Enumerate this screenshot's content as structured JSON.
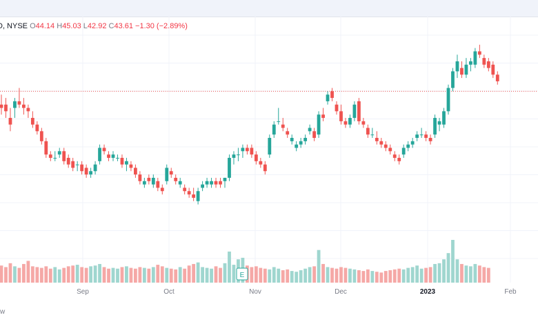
{
  "legend": {
    "ticker": "D, NYSE",
    "o_label": "O",
    "o_value": "44.14",
    "h_label": "H",
    "h_value": "45.03",
    "l_label": "L",
    "l_value": "42.92",
    "c_label": "C",
    "c_value": "43.61",
    "change": "−1.30 (−2.89%)"
  },
  "footer_text": "w",
  "event_badge": "E",
  "colors": {
    "up": "#26a69a",
    "down": "#ef5350",
    "up_vol": "#9fd6cf",
    "down_vol": "#f5a8a6",
    "grid": "#f0f3fa",
    "price_line": "#ef5350"
  },
  "chart_data": {
    "type": "candlestick",
    "x_tick_labels": [
      "Sep",
      "Oct",
      "Nov",
      "Dec",
      "2023",
      "Feb"
    ],
    "ylim": [
      40.5,
      46.3
    ],
    "last_price": 44.8,
    "candles": [
      {
        "o": 44.4,
        "h": 44.7,
        "l": 44.1,
        "c": 44.3
      },
      {
        "o": 44.4,
        "h": 44.6,
        "l": 44.0,
        "c": 44.2
      },
      {
        "o": 44.0,
        "h": 44.3,
        "l": 43.6,
        "c": 43.8
      },
      {
        "o": 44.3,
        "h": 44.6,
        "l": 44.0,
        "c": 44.5
      },
      {
        "o": 44.5,
        "h": 44.9,
        "l": 44.3,
        "c": 44.4
      },
      {
        "o": 44.4,
        "h": 44.6,
        "l": 44.1,
        "c": 44.3
      },
      {
        "o": 44.3,
        "h": 44.4,
        "l": 44.0,
        "c": 44.2
      },
      {
        "o": 44.0,
        "h": 44.2,
        "l": 43.7,
        "c": 43.8
      },
      {
        "o": 43.8,
        "h": 43.9,
        "l": 43.5,
        "c": 43.6
      },
      {
        "o": 43.6,
        "h": 43.7,
        "l": 43.2,
        "c": 43.3
      },
      {
        "o": 43.3,
        "h": 43.4,
        "l": 42.8,
        "c": 42.9
      },
      {
        "o": 42.9,
        "h": 43.0,
        "l": 42.7,
        "c": 42.8
      },
      {
        "o": 42.8,
        "h": 43.0,
        "l": 42.7,
        "c": 42.8
      },
      {
        "o": 42.9,
        "h": 43.1,
        "l": 42.8,
        "c": 43.0
      },
      {
        "o": 43.0,
        "h": 43.1,
        "l": 42.6,
        "c": 42.7
      },
      {
        "o": 42.8,
        "h": 42.9,
        "l": 42.5,
        "c": 42.6
      },
      {
        "o": 42.7,
        "h": 42.8,
        "l": 42.4,
        "c": 42.5
      },
      {
        "o": 42.6,
        "h": 42.7,
        "l": 42.4,
        "c": 42.6
      },
      {
        "o": 42.6,
        "h": 42.7,
        "l": 42.3,
        "c": 42.4
      },
      {
        "o": 42.5,
        "h": 42.6,
        "l": 42.2,
        "c": 42.3
      },
      {
        "o": 42.3,
        "h": 42.5,
        "l": 42.2,
        "c": 42.4
      },
      {
        "o": 42.4,
        "h": 42.7,
        "l": 42.3,
        "c": 42.6
      },
      {
        "o": 42.7,
        "h": 43.2,
        "l": 42.6,
        "c": 43.1
      },
      {
        "o": 43.1,
        "h": 43.2,
        "l": 42.9,
        "c": 43.0
      },
      {
        "o": 42.9,
        "h": 43.0,
        "l": 42.7,
        "c": 42.8
      },
      {
        "o": 42.8,
        "h": 43.0,
        "l": 42.7,
        "c": 42.9
      },
      {
        "o": 42.8,
        "h": 42.9,
        "l": 42.7,
        "c": 42.8
      },
      {
        "o": 42.8,
        "h": 42.9,
        "l": 42.5,
        "c": 42.6
      },
      {
        "o": 42.6,
        "h": 42.8,
        "l": 42.4,
        "c": 42.7
      },
      {
        "o": 42.6,
        "h": 42.7,
        "l": 42.4,
        "c": 42.5
      },
      {
        "o": 42.5,
        "h": 42.6,
        "l": 42.2,
        "c": 42.3
      },
      {
        "o": 42.3,
        "h": 42.4,
        "l": 42.0,
        "c": 42.1
      },
      {
        "o": 42.0,
        "h": 42.2,
        "l": 41.9,
        "c": 42.1
      },
      {
        "o": 42.2,
        "h": 42.3,
        "l": 42.0,
        "c": 42.1
      },
      {
        "o": 42.0,
        "h": 42.3,
        "l": 41.9,
        "c": 42.2
      },
      {
        "o": 42.1,
        "h": 42.2,
        "l": 41.8,
        "c": 41.9
      },
      {
        "o": 41.9,
        "h": 42.0,
        "l": 41.7,
        "c": 41.8
      },
      {
        "o": 42.1,
        "h": 42.6,
        "l": 42.0,
        "c": 42.5
      },
      {
        "o": 42.4,
        "h": 42.5,
        "l": 42.2,
        "c": 42.3
      },
      {
        "o": 42.2,
        "h": 42.3,
        "l": 42.0,
        "c": 42.1
      },
      {
        "o": 42.0,
        "h": 42.2,
        "l": 41.9,
        "c": 42.1
      },
      {
        "o": 41.9,
        "h": 42.0,
        "l": 41.7,
        "c": 41.8
      },
      {
        "o": 41.8,
        "h": 41.9,
        "l": 41.6,
        "c": 41.7
      },
      {
        "o": 41.7,
        "h": 41.9,
        "l": 41.5,
        "c": 41.6
      },
      {
        "o": 41.5,
        "h": 41.9,
        "l": 41.4,
        "c": 41.8
      },
      {
        "o": 41.9,
        "h": 42.1,
        "l": 41.8,
        "c": 42.0
      },
      {
        "o": 42.0,
        "h": 42.2,
        "l": 41.9,
        "c": 42.1
      },
      {
        "o": 42.0,
        "h": 42.2,
        "l": 41.9,
        "c": 42.1
      },
      {
        "o": 42.1,
        "h": 42.2,
        "l": 41.9,
        "c": 42.0
      },
      {
        "o": 42.1,
        "h": 42.2,
        "l": 41.9,
        "c": 42.0
      },
      {
        "o": 42.1,
        "h": 42.2,
        "l": 41.9,
        "c": 42.2
      },
      {
        "o": 42.2,
        "h": 42.9,
        "l": 42.1,
        "c": 42.8
      },
      {
        "o": 42.8,
        "h": 43.0,
        "l": 42.6,
        "c": 42.9
      },
      {
        "o": 42.9,
        "h": 43.1,
        "l": 42.7,
        "c": 42.9
      },
      {
        "o": 43.0,
        "h": 43.2,
        "l": 42.8,
        "c": 43.1
      },
      {
        "o": 43.1,
        "h": 43.2,
        "l": 42.9,
        "c": 43.0
      },
      {
        "o": 43.1,
        "h": 43.2,
        "l": 42.8,
        "c": 42.9
      },
      {
        "o": 42.9,
        "h": 43.0,
        "l": 42.6,
        "c": 42.7
      },
      {
        "o": 42.7,
        "h": 42.8,
        "l": 42.5,
        "c": 42.6
      },
      {
        "o": 42.6,
        "h": 42.7,
        "l": 42.3,
        "c": 42.4
      },
      {
        "o": 42.9,
        "h": 43.5,
        "l": 42.8,
        "c": 43.4
      },
      {
        "o": 43.5,
        "h": 43.9,
        "l": 43.4,
        "c": 43.8
      },
      {
        "o": 43.9,
        "h": 44.3,
        "l": 43.8,
        "c": 43.9
      },
      {
        "o": 43.8,
        "h": 44.0,
        "l": 43.6,
        "c": 43.7
      },
      {
        "o": 43.6,
        "h": 43.7,
        "l": 43.4,
        "c": 43.5
      },
      {
        "o": 43.3,
        "h": 43.5,
        "l": 43.2,
        "c": 43.4
      },
      {
        "o": 43.1,
        "h": 43.3,
        "l": 43.0,
        "c": 43.2
      },
      {
        "o": 43.2,
        "h": 43.4,
        "l": 43.1,
        "c": 43.3
      },
      {
        "o": 43.3,
        "h": 43.5,
        "l": 43.2,
        "c": 43.4
      },
      {
        "o": 43.6,
        "h": 43.8,
        "l": 43.5,
        "c": 43.7
      },
      {
        "o": 43.6,
        "h": 43.7,
        "l": 43.3,
        "c": 43.4
      },
      {
        "o": 43.5,
        "h": 44.2,
        "l": 43.4,
        "c": 44.1
      },
      {
        "o": 44.1,
        "h": 44.3,
        "l": 43.9,
        "c": 44.0
      },
      {
        "o": 44.5,
        "h": 44.8,
        "l": 44.4,
        "c": 44.7
      },
      {
        "o": 44.8,
        "h": 44.9,
        "l": 44.5,
        "c": 44.6
      },
      {
        "o": 44.4,
        "h": 44.5,
        "l": 44.1,
        "c": 44.2
      },
      {
        "o": 44.2,
        "h": 44.4,
        "l": 43.8,
        "c": 43.9
      },
      {
        "o": 43.9,
        "h": 44.0,
        "l": 43.7,
        "c": 43.8
      },
      {
        "o": 43.8,
        "h": 44.1,
        "l": 43.7,
        "c": 44.0
      },
      {
        "o": 44.0,
        "h": 44.5,
        "l": 43.9,
        "c": 44.4
      },
      {
        "o": 44.5,
        "h": 44.6,
        "l": 43.8,
        "c": 43.9
      },
      {
        "o": 43.9,
        "h": 44.0,
        "l": 43.7,
        "c": 43.8
      },
      {
        "o": 43.7,
        "h": 43.8,
        "l": 43.4,
        "c": 43.5
      },
      {
        "o": 43.5,
        "h": 43.7,
        "l": 43.4,
        "c": 43.5
      },
      {
        "o": 43.4,
        "h": 43.6,
        "l": 43.2,
        "c": 43.3
      },
      {
        "o": 43.3,
        "h": 43.4,
        "l": 43.1,
        "c": 43.2
      },
      {
        "o": 43.2,
        "h": 43.3,
        "l": 43.0,
        "c": 43.1
      },
      {
        "o": 43.1,
        "h": 43.2,
        "l": 42.9,
        "c": 43.0
      },
      {
        "o": 42.9,
        "h": 43.0,
        "l": 42.7,
        "c": 42.8
      },
      {
        "o": 42.8,
        "h": 42.9,
        "l": 42.6,
        "c": 42.7
      },
      {
        "o": 42.9,
        "h": 43.2,
        "l": 42.8,
        "c": 43.1
      },
      {
        "o": 43.1,
        "h": 43.3,
        "l": 43.0,
        "c": 43.2
      },
      {
        "o": 43.2,
        "h": 43.4,
        "l": 43.1,
        "c": 43.3
      },
      {
        "o": 43.4,
        "h": 43.6,
        "l": 43.3,
        "c": 43.5
      },
      {
        "o": 43.5,
        "h": 43.7,
        "l": 43.4,
        "c": 43.5
      },
      {
        "o": 43.5,
        "h": 43.6,
        "l": 43.3,
        "c": 43.4
      },
      {
        "o": 43.4,
        "h": 43.5,
        "l": 43.2,
        "c": 43.3
      },
      {
        "o": 43.5,
        "h": 44.1,
        "l": 43.4,
        "c": 44.0
      },
      {
        "o": 43.8,
        "h": 44.0,
        "l": 43.6,
        "c": 43.9
      },
      {
        "o": 43.8,
        "h": 44.3,
        "l": 43.7,
        "c": 44.2
      },
      {
        "o": 44.2,
        "h": 45.0,
        "l": 44.1,
        "c": 44.9
      },
      {
        "o": 44.9,
        "h": 45.5,
        "l": 44.8,
        "c": 45.4
      },
      {
        "o": 45.4,
        "h": 45.9,
        "l": 45.2,
        "c": 45.7
      },
      {
        "o": 45.5,
        "h": 45.7,
        "l": 45.2,
        "c": 45.3
      },
      {
        "o": 45.3,
        "h": 45.8,
        "l": 45.2,
        "c": 45.6
      },
      {
        "o": 45.6,
        "h": 45.8,
        "l": 45.4,
        "c": 45.7
      },
      {
        "o": 45.6,
        "h": 46.1,
        "l": 45.5,
        "c": 46.0
      },
      {
        "o": 46.0,
        "h": 46.2,
        "l": 45.8,
        "c": 45.9
      },
      {
        "o": 45.8,
        "h": 45.9,
        "l": 45.5,
        "c": 45.6
      },
      {
        "o": 45.7,
        "h": 45.8,
        "l": 45.4,
        "c": 45.5
      },
      {
        "o": 45.6,
        "h": 45.7,
        "l": 45.2,
        "c": 45.3
      },
      {
        "o": 45.3,
        "h": 45.4,
        "l": 45.0,
        "c": 45.1
      }
    ],
    "volume": [
      22,
      20,
      25,
      21,
      19,
      24,
      28,
      21,
      20,
      19,
      21,
      18,
      20,
      17,
      19,
      21,
      22,
      23,
      20,
      19,
      21,
      22,
      24,
      20,
      18,
      19,
      18,
      20,
      21,
      19,
      18,
      20,
      19,
      18,
      20,
      23,
      21,
      19,
      18,
      17,
      20,
      18,
      22,
      24,
      26,
      20,
      19,
      18,
      21,
      19,
      25,
      40,
      23,
      30,
      32,
      22,
      20,
      21,
      19,
      18,
      17,
      20,
      18,
      16,
      17,
      15,
      14,
      16,
      18,
      20,
      21,
      42,
      24,
      20,
      19,
      18,
      20,
      19,
      18,
      17,
      16,
      15,
      17,
      15,
      14,
      13,
      15,
      16,
      17,
      18,
      17,
      19,
      20,
      22,
      18,
      19,
      20,
      24,
      25,
      30,
      38,
      55,
      30,
      24,
      22,
      21,
      24,
      22,
      20,
      19
    ]
  }
}
